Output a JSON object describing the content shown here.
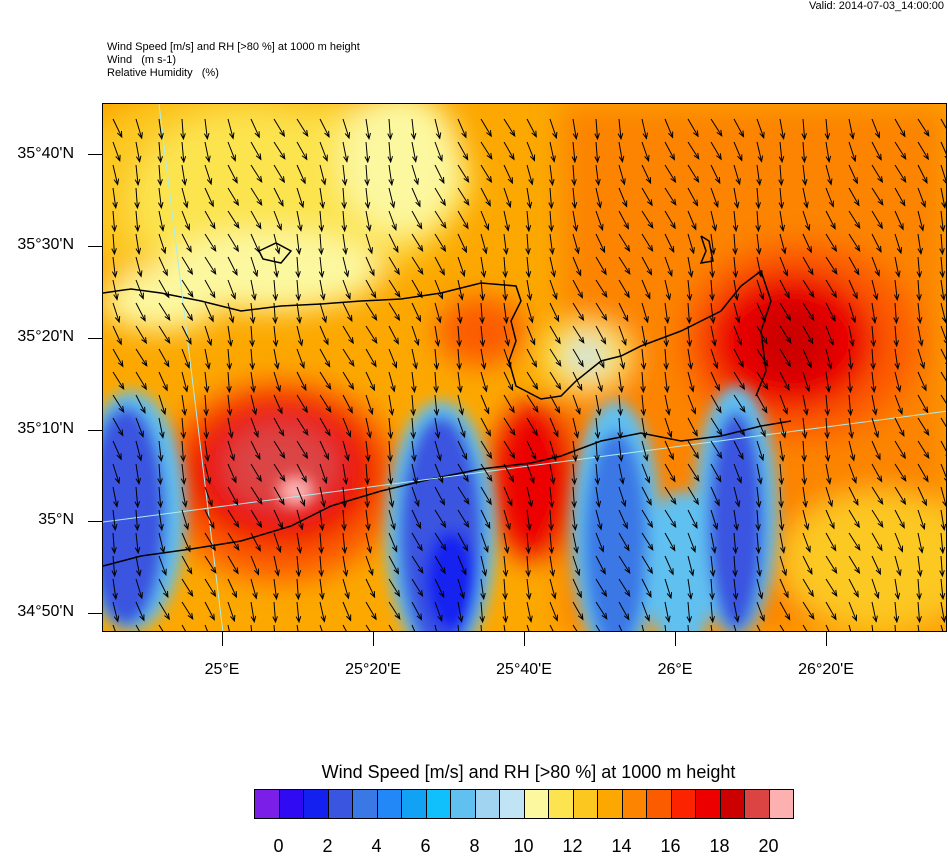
{
  "valid": "Valid: 2014-07-03_14:00:00",
  "header": {
    "line1": "Wind Speed [m/s] and RH [>80 %] at 1000 m height",
    "line2": "Wind   (m s-1)",
    "line3": "Relative Humidity   (%)"
  },
  "lat_labels": [
    "35°40'N",
    "35°30'N",
    "35°20'N",
    "35°10'N",
    "35°N",
    "34°50'N"
  ],
  "lon_labels": [
    "25°E",
    "25°20'E",
    "25°40'E",
    "26°E",
    "26°20'E"
  ],
  "colorbar": {
    "title": "Wind Speed [m/s] and RH [>80 %] at 1000 m height",
    "colors": [
      "#7a1ee8",
      "#2f0af2",
      "#1420f0",
      "#3a55e0",
      "#3a78e6",
      "#2288f8",
      "#12a2f5",
      "#10c0fc",
      "#60c0f0",
      "#a0d4f0",
      "#c0e4f4",
      "#fcf8a0",
      "#fce450",
      "#fcc820",
      "#fca800",
      "#fc8400",
      "#fc5c00",
      "#fc2400",
      "#ec0000",
      "#cc0000",
      "#dc4444",
      "#fcb0b0"
    ],
    "labels": [
      "0",
      "2",
      "4",
      "6",
      "8",
      "10",
      "12",
      "14",
      "16",
      "18",
      "20"
    ]
  }
}
